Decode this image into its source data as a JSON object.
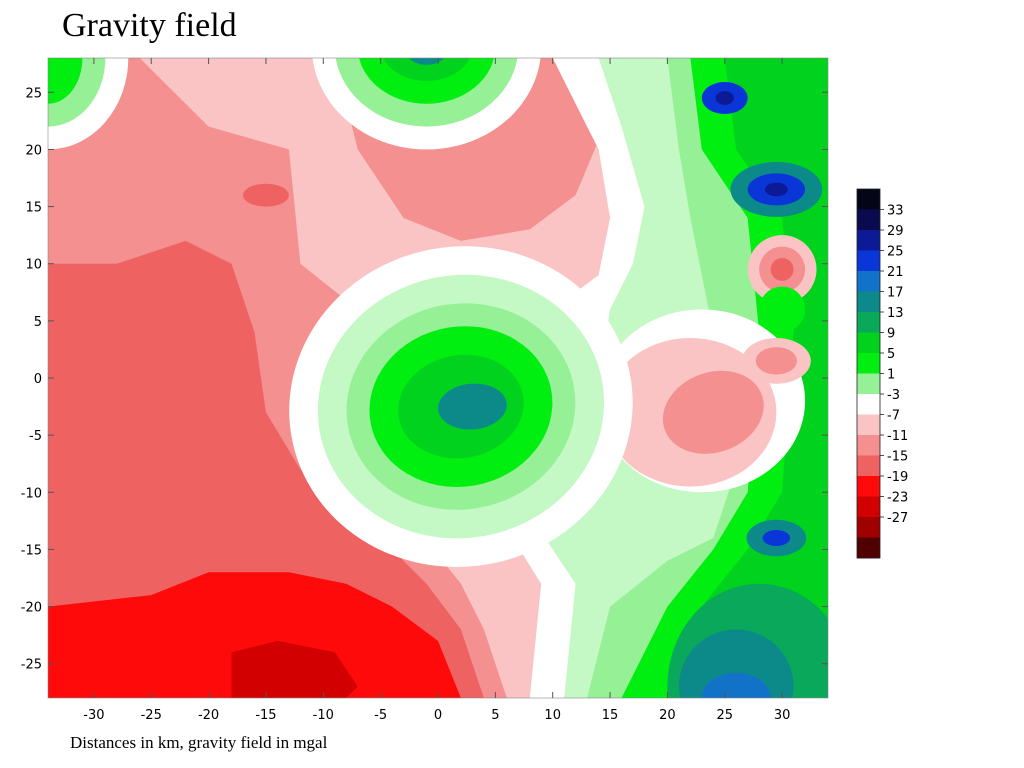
{
  "title": "Gravity field",
  "caption": "Distances in km, gravity field in mgal",
  "chart_data": {
    "type": "heatmap",
    "subtype": "filled-contour",
    "xlim": [
      -34,
      34
    ],
    "ylim": [
      -28,
      28
    ],
    "x_ticks": [
      -30,
      -25,
      -20,
      -15,
      -10,
      -5,
      0,
      5,
      10,
      15,
      20,
      25,
      30
    ],
    "y_ticks": [
      25,
      20,
      15,
      10,
      5,
      0,
      -5,
      -10,
      -15,
      -20,
      -25
    ],
    "colorbar": {
      "levels": [
        33,
        29,
        25,
        21,
        17,
        13,
        9,
        5,
        1,
        -3,
        -7,
        -11,
        -15,
        -19,
        -23,
        -27
      ],
      "colors": [
        "#050518",
        "#0a0a4e",
        "#0c1a96",
        "#0a36d8",
        "#1272c8",
        "#0c8a8a",
        "#0aa85a",
        "#00d21e",
        "#00ee10",
        "#96f096",
        "#ffffff",
        "#fbc4c4",
        "#f59090",
        "#ee6262",
        "#ff0a0a",
        "#d20000",
        "#a00000",
        "#500000"
      ]
    },
    "features": [
      {
        "kind": "positive-anomaly",
        "x": 2,
        "y": -2.5,
        "peak": 13
      },
      {
        "kind": "positive-anomaly",
        "x": -1,
        "y": 27,
        "peak": 13
      },
      {
        "kind": "positive-anomaly",
        "x": 25,
        "y": 24.5,
        "peak": 29
      },
      {
        "kind": "positive-anomaly",
        "x": 29.5,
        "y": 16.5,
        "peak": 25
      },
      {
        "kind": "positive-anomaly",
        "x": 29.5,
        "y": -14,
        "peak": 25
      },
      {
        "kind": "positive-anomaly",
        "x": 26,
        "y": -28,
        "peak": 17
      },
      {
        "kind": "negative-anomaly",
        "x": -14,
        "y": -26,
        "peak": -19
      },
      {
        "kind": "negative-anomaly",
        "x": 30,
        "y": 9.5,
        "peak": -11
      },
      {
        "kind": "negative-anomaly",
        "x": 29.5,
        "y": 1.5,
        "peak": -7
      }
    ]
  }
}
